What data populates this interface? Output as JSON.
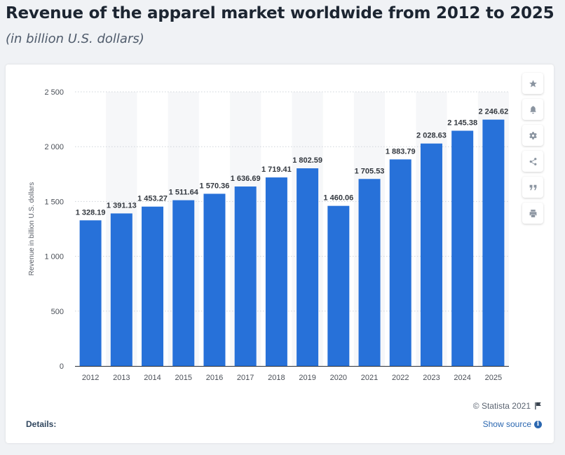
{
  "header": {
    "title": "Revenue of the apparel market worldwide from 2012 to 2025",
    "subtitle": "(in billion U.S. dollars)"
  },
  "side_buttons": [
    {
      "name": "star-icon"
    },
    {
      "name": "bell-icon"
    },
    {
      "name": "gear-icon"
    },
    {
      "name": "share-icon"
    },
    {
      "name": "quote-icon"
    },
    {
      "name": "print-icon"
    }
  ],
  "footer": {
    "credit": "© Statista 2021",
    "details_label": "Details:",
    "show_source_label": "Show source",
    "info_glyph": "i"
  },
  "colors": {
    "bar": "#2771d9",
    "grid": "#cfd4da",
    "column_shade": "#f6f7f9",
    "label": "#33383f"
  },
  "chart_data": {
    "type": "bar",
    "ylabel": "Revenue in billion U.S. dollars",
    "xlabel": "",
    "ylim": [
      0,
      2500
    ],
    "yticks": [
      0,
      500,
      1000,
      1500,
      2000,
      2500
    ],
    "ytick_labels": [
      "0",
      "500",
      "1 000",
      "1 500",
      "2 000",
      "2 500"
    ],
    "grid": true,
    "categories": [
      "2012",
      "2013",
      "2014",
      "2015",
      "2016",
      "2017",
      "2018",
      "2019",
      "2020",
      "2021",
      "2022",
      "2023",
      "2024",
      "2025"
    ],
    "values": [
      1328.19,
      1391.13,
      1453.27,
      1511.64,
      1570.36,
      1636.69,
      1719.41,
      1802.59,
      1460.06,
      1705.53,
      1883.79,
      2028.63,
      2145.38,
      2246.62
    ],
    "value_labels": [
      "1 328.19",
      "1 391.13",
      "1 453.27",
      "1 511.64",
      "1 570.36",
      "1 636.69",
      "1 719.41",
      "1 802.59",
      "1 460.06",
      "1 705.53",
      "1 883.79",
      "2 028.63",
      "2 145.38",
      "2 246.62"
    ]
  }
}
